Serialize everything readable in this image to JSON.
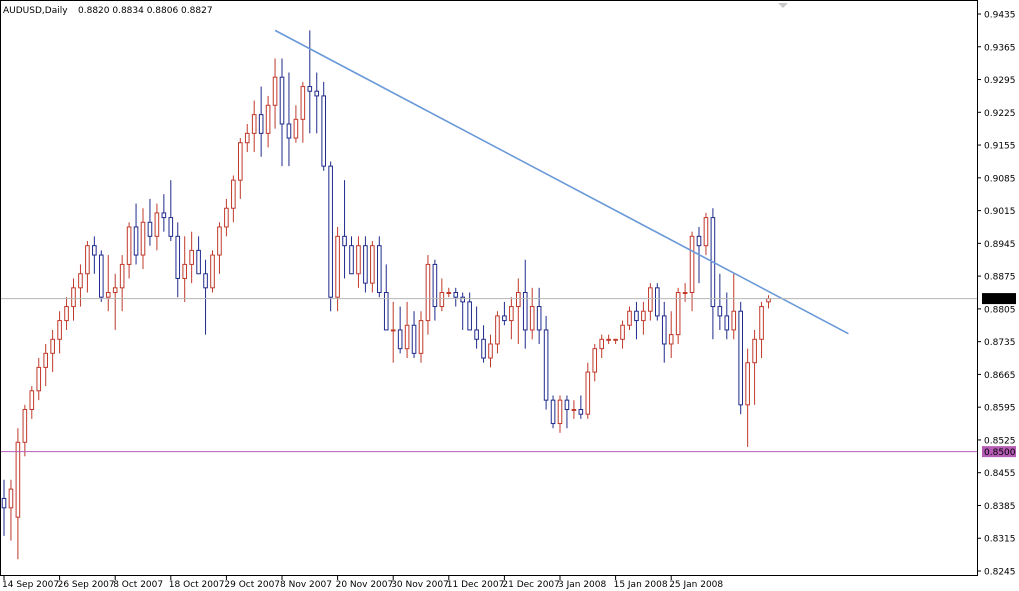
{
  "header": {
    "symbol": "AUDUSD,Daily",
    "ohlc": "0.8820 0.8834 0.8806 0.8827"
  },
  "colors": {
    "up": "#c0392b",
    "down": "#1f2a8c",
    "trend": "#6a99d8",
    "support": "#b45bb4",
    "current": "#b4b4b4",
    "frame": "#000000"
  },
  "chart_data": {
    "type": "candlestick",
    "symbol": "AUDUSD",
    "timeframe": "Daily",
    "ylim": [
      0.8245,
      0.9445
    ],
    "y_ticks": [
      "0.9435",
      "0.9365",
      "0.9295",
      "0.9225",
      "0.9155",
      "0.9085",
      "0.9015",
      "0.8945",
      "0.8875",
      "0.8805",
      "0.8735",
      "0.8665",
      "0.8595",
      "0.8525",
      "0.8455",
      "0.8385",
      "0.8315",
      "0.8245"
    ],
    "x_ticks": [
      {
        "label": "14 Sep 2007",
        "index": 0
      },
      {
        "label": "26 Sep 2007",
        "index": 8
      },
      {
        "label": "8 Oct 2007",
        "index": 16
      },
      {
        "label": "18 Oct 2007",
        "index": 24
      },
      {
        "label": "29 Oct 2007",
        "index": 32
      },
      {
        "label": "8 Nov 2007",
        "index": 40
      },
      {
        "label": "20 Nov 2007",
        "index": 48
      },
      {
        "label": "30 Nov 2007",
        "index": 56
      },
      {
        "label": "11 Dec 2007",
        "index": 64
      },
      {
        "label": "21 Dec 2007",
        "index": 72
      },
      {
        "label": "3 Jan 2008",
        "index": 80
      },
      {
        "label": "15 Jan 2008",
        "index": 88
      },
      {
        "label": "25 Jan 2008",
        "index": 96
      }
    ],
    "current_price": "0.8827",
    "support_level": "0.8500",
    "trendline": {
      "start": {
        "index": 39,
        "price": 0.94
      },
      "end": {
        "index": 121.5,
        "price": 0.8752
      }
    },
    "ohlc": [
      [
        0.84,
        0.844,
        0.832,
        0.838
      ],
      [
        0.838,
        0.844,
        0.831,
        0.842
      ],
      [
        0.836,
        0.855,
        0.827,
        0.852
      ],
      [
        0.852,
        0.86,
        0.849,
        0.859
      ],
      [
        0.859,
        0.864,
        0.857,
        0.863
      ],
      [
        0.863,
        0.87,
        0.861,
        0.868
      ],
      [
        0.868,
        0.873,
        0.864,
        0.871
      ],
      [
        0.871,
        0.876,
        0.867,
        0.874
      ],
      [
        0.874,
        0.88,
        0.871,
        0.878
      ],
      [
        0.878,
        0.883,
        0.876,
        0.881
      ],
      [
        0.881,
        0.887,
        0.878,
        0.885
      ],
      [
        0.885,
        0.89,
        0.881,
        0.888
      ],
      [
        0.888,
        0.895,
        0.884,
        0.894
      ],
      [
        0.894,
        0.896,
        0.888,
        0.892
      ],
      [
        0.892,
        0.893,
        0.882,
        0.883
      ],
      [
        0.883,
        0.892,
        0.88,
        0.884
      ],
      [
        0.884,
        0.888,
        0.876,
        0.885
      ],
      [
        0.885,
        0.892,
        0.88,
        0.89
      ],
      [
        0.89,
        0.899,
        0.887,
        0.898
      ],
      [
        0.898,
        0.903,
        0.89,
        0.892
      ],
      [
        0.892,
        0.902,
        0.889,
        0.899
      ],
      [
        0.899,
        0.904,
        0.894,
        0.896
      ],
      [
        0.896,
        0.903,
        0.893,
        0.901
      ],
      [
        0.901,
        0.905,
        0.897,
        0.9
      ],
      [
        0.9,
        0.908,
        0.895,
        0.896
      ],
      [
        0.896,
        0.899,
        0.883,
        0.887
      ],
      [
        0.887,
        0.896,
        0.882,
        0.89
      ],
      [
        0.89,
        0.897,
        0.886,
        0.893
      ],
      [
        0.893,
        0.896,
        0.888,
        0.888
      ],
      [
        0.888,
        0.891,
        0.875,
        0.885
      ],
      [
        0.885,
        0.893,
        0.884,
        0.892
      ],
      [
        0.892,
        0.899,
        0.888,
        0.898
      ],
      [
        0.898,
        0.904,
        0.896,
        0.902
      ],
      [
        0.902,
        0.909,
        0.899,
        0.908
      ],
      [
        0.908,
        0.917,
        0.904,
        0.916
      ],
      [
        0.916,
        0.92,
        0.914,
        0.918
      ],
      [
        0.918,
        0.925,
        0.914,
        0.922
      ],
      [
        0.922,
        0.928,
        0.913,
        0.918
      ],
      [
        0.918,
        0.926,
        0.915,
        0.924
      ],
      [
        0.924,
        0.934,
        0.919,
        0.93
      ],
      [
        0.93,
        0.934,
        0.911,
        0.92
      ],
      [
        0.92,
        0.931,
        0.911,
        0.917
      ],
      [
        0.917,
        0.924,
        0.916,
        0.921
      ],
      [
        0.921,
        0.929,
        0.916,
        0.928
      ],
      [
        0.928,
        0.94,
        0.918,
        0.927
      ],
      [
        0.927,
        0.931,
        0.918,
        0.926
      ],
      [
        0.926,
        0.929,
        0.91,
        0.911
      ],
      [
        0.911,
        0.912,
        0.88,
        0.883
      ],
      [
        0.883,
        0.898,
        0.88,
        0.896
      ],
      [
        0.896,
        0.908,
        0.887,
        0.894
      ],
      [
        0.894,
        0.896,
        0.888,
        0.888
      ],
      [
        0.888,
        0.896,
        0.885,
        0.894
      ],
      [
        0.894,
        0.896,
        0.884,
        0.886
      ],
      [
        0.886,
        0.895,
        0.884,
        0.894
      ],
      [
        0.894,
        0.896,
        0.883,
        0.884
      ],
      [
        0.884,
        0.89,
        0.876,
        0.876
      ],
      [
        0.876,
        0.882,
        0.869,
        0.876
      ],
      [
        0.876,
        0.881,
        0.871,
        0.872
      ],
      [
        0.872,
        0.882,
        0.87,
        0.877
      ],
      [
        0.877,
        0.88,
        0.87,
        0.871
      ],
      [
        0.871,
        0.88,
        0.869,
        0.878
      ],
      [
        0.878,
        0.892,
        0.875,
        0.89
      ],
      [
        0.89,
        0.891,
        0.878,
        0.881
      ],
      [
        0.881,
        0.887,
        0.88,
        0.884
      ],
      [
        0.884,
        0.885,
        0.883,
        0.884
      ],
      [
        0.884,
        0.885,
        0.881,
        0.883
      ],
      [
        0.883,
        0.884,
        0.876,
        0.882
      ],
      [
        0.882,
        0.884,
        0.876,
        0.876
      ],
      [
        0.876,
        0.881,
        0.872,
        0.874
      ],
      [
        0.874,
        0.877,
        0.869,
        0.87
      ],
      [
        0.87,
        0.875,
        0.868,
        0.873
      ],
      [
        0.873,
        0.88,
        0.871,
        0.879
      ],
      [
        0.879,
        0.882,
        0.877,
        0.878
      ],
      [
        0.878,
        0.883,
        0.874,
        0.881
      ],
      [
        0.881,
        0.887,
        0.873,
        0.884
      ],
      [
        0.884,
        0.891,
        0.872,
        0.876
      ],
      [
        0.876,
        0.885,
        0.874,
        0.881
      ],
      [
        0.881,
        0.885,
        0.873,
        0.876
      ],
      [
        0.876,
        0.879,
        0.859,
        0.861
      ],
      [
        0.861,
        0.862,
        0.855,
        0.856
      ],
      [
        0.856,
        0.862,
        0.854,
        0.861
      ],
      [
        0.861,
        0.862,
        0.855,
        0.859
      ],
      [
        0.859,
        0.861,
        0.857,
        0.859
      ],
      [
        0.859,
        0.862,
        0.857,
        0.858
      ],
      [
        0.858,
        0.869,
        0.857,
        0.867
      ],
      [
        0.867,
        0.873,
        0.865,
        0.872
      ],
      [
        0.872,
        0.875,
        0.87,
        0.874
      ],
      [
        0.874,
        0.875,
        0.873,
        0.874
      ],
      [
        0.874,
        0.874,
        0.873,
        0.874
      ],
      [
        0.874,
        0.878,
        0.872,
        0.877
      ],
      [
        0.877,
        0.881,
        0.876,
        0.88
      ],
      [
        0.88,
        0.882,
        0.874,
        0.878
      ],
      [
        0.878,
        0.882,
        0.875,
        0.88
      ],
      [
        0.88,
        0.886,
        0.878,
        0.885
      ],
      [
        0.885,
        0.886,
        0.878,
        0.879
      ],
      [
        0.879,
        0.882,
        0.869,
        0.873
      ],
      [
        0.873,
        0.88,
        0.87,
        0.875
      ],
      [
        0.875,
        0.885,
        0.873,
        0.884
      ],
      [
        0.884,
        0.886,
        0.882,
        0.884
      ],
      [
        0.884,
        0.897,
        0.88,
        0.896
      ],
      [
        0.896,
        0.898,
        0.886,
        0.894
      ],
      [
        0.894,
        0.901,
        0.892,
        0.9
      ],
      [
        0.9,
        0.902,
        0.874,
        0.881
      ],
      [
        0.881,
        0.888,
        0.876,
        0.879
      ],
      [
        0.879,
        0.884,
        0.874,
        0.876
      ],
      [
        0.876,
        0.888,
        0.874,
        0.88
      ],
      [
        0.88,
        0.882,
        0.858,
        0.86
      ],
      [
        0.86,
        0.872,
        0.851,
        0.869
      ],
      [
        0.869,
        0.876,
        0.86,
        0.874
      ],
      [
        0.874,
        0.882,
        0.87,
        0.881
      ],
      [
        0.882,
        0.8834,
        0.8806,
        0.8827
      ]
    ]
  }
}
